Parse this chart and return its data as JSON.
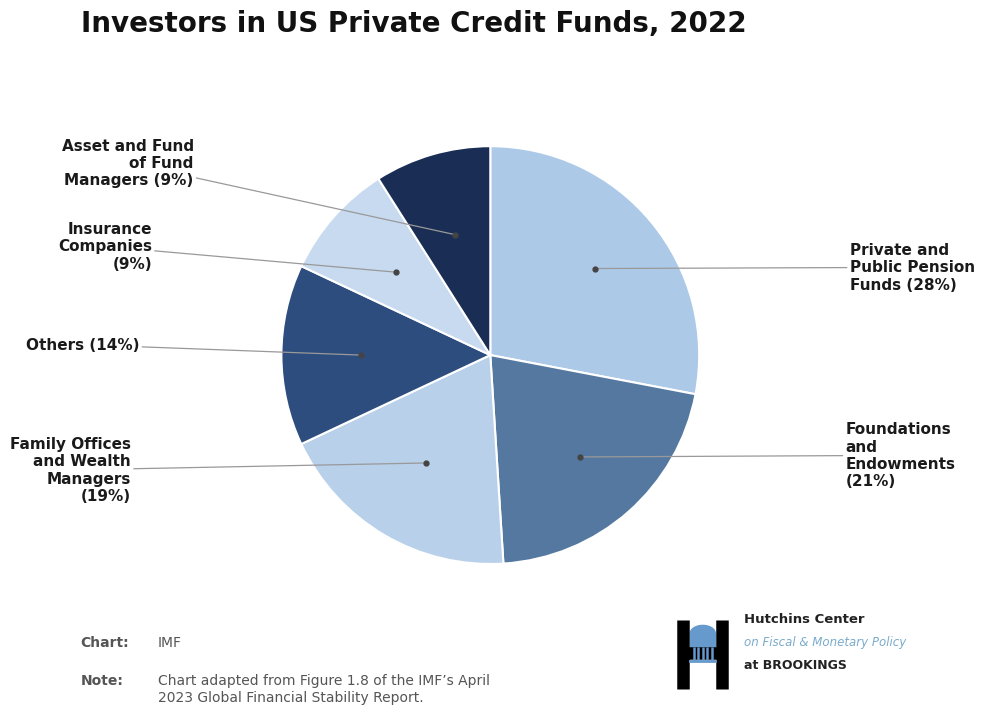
{
  "title": "Investors in US Private Credit Funds, 2022",
  "slices": [
    {
      "label": "Private and\nPublic Pension\nFunds (28%)",
      "value": 28,
      "color": "#adc9e8"
    },
    {
      "label": "Foundations\nand\nEndowments\n(21%)",
      "value": 21,
      "color": "#5578a0"
    },
    {
      "label": "Family Offices\nand Wealth\nManagers\n(19%)",
      "value": 19,
      "color": "#b8d0ea"
    },
    {
      "label": "Others (14%)",
      "value": 14,
      "color": "#2d4d7e"
    },
    {
      "label": "Insurance\nCompanies\n(9%)",
      "value": 9,
      "color": "#c8daf0"
    },
    {
      "label": "Asset and Fund\nof Fund\nManagers (9%)",
      "value": 9,
      "color": "#1a2e55"
    }
  ],
  "chart_source": "IMF",
  "note_text": "Chart adapted from Figure 1.8 of the IMF’s April\n2023 Global Financial Stability Report.",
  "background_color": "#ffffff",
  "title_fontsize": 20,
  "label_fontsize": 11,
  "source_fontsize": 10
}
